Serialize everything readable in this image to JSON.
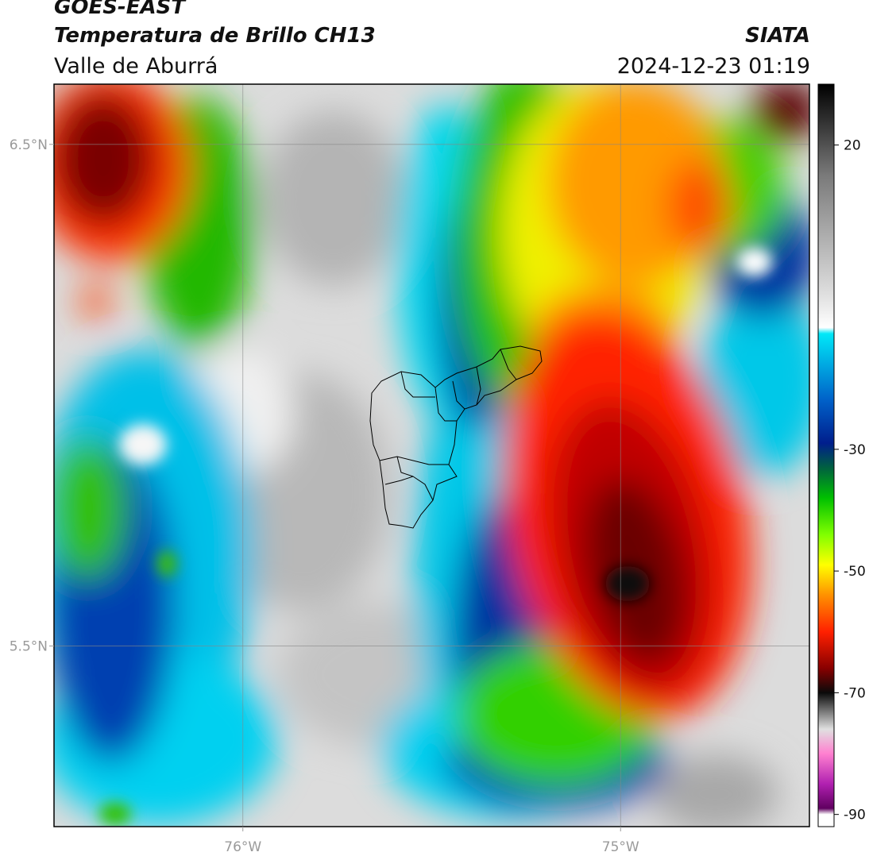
{
  "header": {
    "satellite": "GOES-EAST",
    "product": "Temperatura de Brillo CH13",
    "region": "Valle de Aburrá",
    "agency": "SIATA",
    "timestamp": "2024-12-23 01:19"
  },
  "map": {
    "lon_range": [
      -76.5,
      -74.5
    ],
    "lat_range": [
      5.14,
      6.62
    ],
    "lon_ticks": [
      {
        "value": -76,
        "label": "76°W"
      },
      {
        "value": -75,
        "label": "75°W"
      }
    ],
    "lat_ticks": [
      {
        "value": 6.5,
        "label": "6.5°N"
      },
      {
        "value": 5.5,
        "label": "5.5°N"
      }
    ],
    "grid": true
  },
  "colorbar": {
    "range": [
      -92,
      30
    ],
    "ticks": [
      {
        "value": 20,
        "label": "20"
      },
      {
        "value": -30,
        "label": "-30"
      },
      {
        "value": -50,
        "label": "-50"
      },
      {
        "value": -70,
        "label": "-70"
      },
      {
        "value": -90,
        "label": "-90"
      }
    ],
    "stops": [
      {
        "v": 30,
        "c": "#000000"
      },
      {
        "v": 15,
        "c": "#7a7a7a"
      },
      {
        "v": -4,
        "c": "#dcdcdc"
      },
      {
        "v": -10,
        "c": "#ffffff"
      },
      {
        "v": -11,
        "c": "#00e8f8"
      },
      {
        "v": -22,
        "c": "#0060c8"
      },
      {
        "v": -29,
        "c": "#001e8c"
      },
      {
        "v": -33,
        "c": "#006040"
      },
      {
        "v": -38,
        "c": "#00c000"
      },
      {
        "v": -44,
        "c": "#80ff00"
      },
      {
        "v": -49,
        "c": "#ffff00"
      },
      {
        "v": -54,
        "c": "#ff9000"
      },
      {
        "v": -60,
        "c": "#ff2000"
      },
      {
        "v": -66,
        "c": "#880000"
      },
      {
        "v": -70,
        "c": "#0a0a0a"
      },
      {
        "v": -76,
        "c": "#e0e0e0"
      },
      {
        "v": -80,
        "c": "#ff80d0"
      },
      {
        "v": -85,
        "c": "#b020b0"
      },
      {
        "v": -89,
        "c": "#600060"
      },
      {
        "v": -90,
        "c": "#ffffff"
      }
    ]
  }
}
